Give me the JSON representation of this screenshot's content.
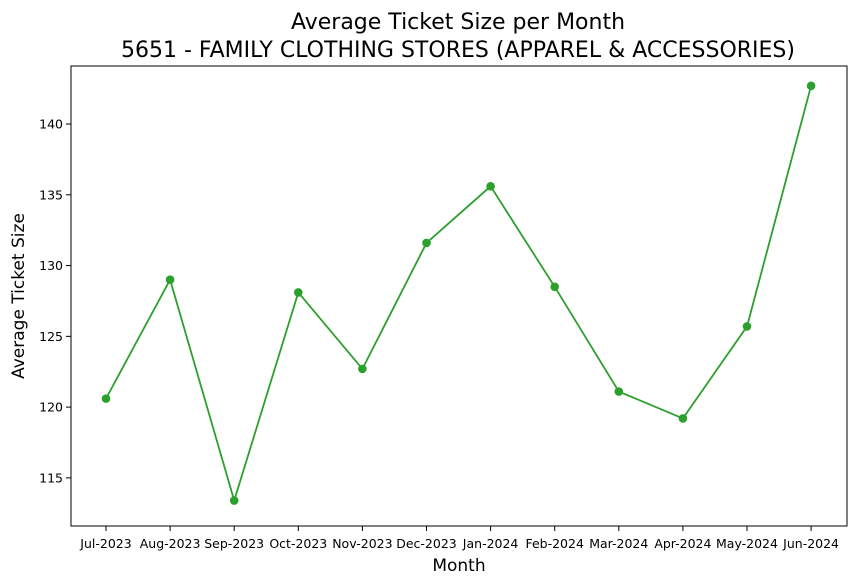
{
  "chart_data": {
    "type": "line",
    "title": "Average Ticket Size per Month",
    "subtitle": "5651 - FAMILY CLOTHING STORES (APPAREL & ACCESSORIES)",
    "xlabel": "Month",
    "ylabel": "Average Ticket Size",
    "categories": [
      "Jul-2023",
      "Aug-2023",
      "Sep-2023",
      "Oct-2023",
      "Nov-2023",
      "Dec-2023",
      "Jan-2024",
      "Feb-2024",
      "Mar-2024",
      "Apr-2024",
      "May-2024",
      "Jun-2024"
    ],
    "series": [
      {
        "values": [
          120.6,
          129.0,
          113.4,
          128.1,
          122.7,
          131.6,
          135.6,
          128.5,
          121.1,
          119.2,
          125.7,
          142.7
        ],
        "color": "#2ca02c",
        "marker": "circle"
      }
    ],
    "ylim": [
      111.6,
      144.1
    ],
    "yticks": [
      115,
      120,
      125,
      130,
      135,
      140
    ],
    "grid": false,
    "legend": "none"
  }
}
